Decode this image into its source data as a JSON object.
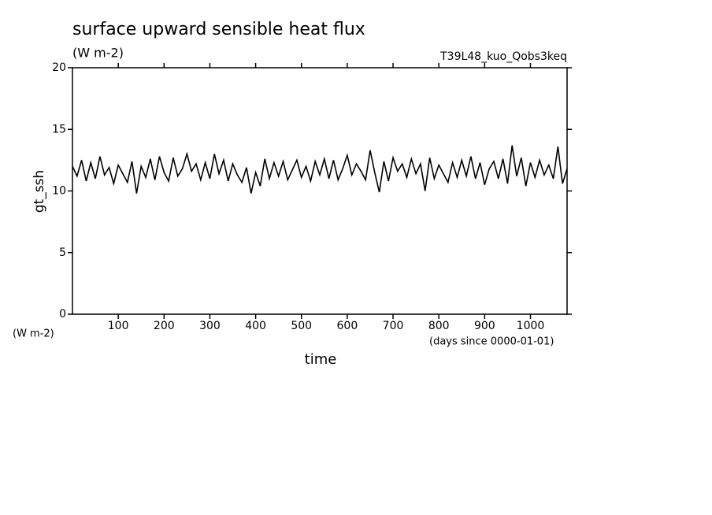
{
  "chart_data": {
    "type": "line",
    "title": "surface upward sensible heat flux",
    "subtitle": "(W m-2)",
    "annotation": "T39L48_kuo_Qobs3keq",
    "y_label": "gt_ssh",
    "y_unit": "(W m-2)",
    "x_label": "time",
    "x_unit": "(days since 0000-01-01)",
    "color": "#000000",
    "x": [
      0,
      10,
      20,
      30,
      40,
      50,
      60,
      70,
      80,
      90,
      100,
      110,
      120,
      130,
      140,
      150,
      160,
      170,
      180,
      190,
      200,
      210,
      220,
      230,
      240,
      250,
      260,
      270,
      280,
      290,
      300,
      310,
      320,
      330,
      340,
      350,
      360,
      370,
      380,
      390,
      400,
      410,
      420,
      430,
      440,
      450,
      460,
      470,
      480,
      490,
      500,
      510,
      520,
      530,
      540,
      550,
      560,
      570,
      580,
      590,
      600,
      610,
      620,
      630,
      640,
      650,
      660,
      670,
      680,
      690,
      700,
      710,
      720,
      730,
      740,
      750,
      760,
      770,
      780,
      790,
      800,
      810,
      820,
      830,
      840,
      850,
      860,
      870,
      880,
      890,
      900,
      910,
      920,
      930,
      940,
      950,
      960,
      970,
      980,
      990,
      1000,
      1010,
      1020,
      1030,
      1040,
      1050,
      1060,
      1070,
      1080
    ],
    "values": [
      12.0,
      11.2,
      12.5,
      10.8,
      12.3,
      11.0,
      12.8,
      11.3,
      11.9,
      10.6,
      12.1,
      11.4,
      10.7,
      12.4,
      9.8,
      12.0,
      11.1,
      12.6,
      10.9,
      12.8,
      11.5,
      10.8,
      12.7,
      11.2,
      11.8,
      13.0,
      11.6,
      12.2,
      10.9,
      12.3,
      11.0,
      13.0,
      11.4,
      12.5,
      10.8,
      12.2,
      11.3,
      10.7,
      11.9,
      9.8,
      11.5,
      10.4,
      12.6,
      11.0,
      12.3,
      11.2,
      12.4,
      10.9,
      11.7,
      12.5,
      11.1,
      12.0,
      10.8,
      12.4,
      11.3,
      12.6,
      11.0,
      12.5,
      10.9,
      11.8,
      12.9,
      11.3,
      12.2,
      11.6,
      10.9,
      13.3,
      11.5,
      9.9,
      12.4,
      10.8,
      12.7,
      11.6,
      12.2,
      11.1,
      12.6,
      11.4,
      12.2,
      10.0,
      12.7,
      11.0,
      12.1,
      11.4,
      10.7,
      12.3,
      11.1,
      12.5,
      11.2,
      12.8,
      11.0,
      12.3,
      10.5,
      11.8,
      12.4,
      11.0,
      12.6,
      10.6,
      13.7,
      11.2,
      12.7,
      10.4,
      12.3,
      11.1,
      12.5,
      11.3,
      12.1,
      11.0,
      13.6,
      10.6,
      11.8
    ],
    "xlim": [
      0,
      1080
    ],
    "xticks": [
      100,
      200,
      300,
      400,
      500,
      600,
      700,
      800,
      900,
      1000
    ],
    "ylim": [
      0,
      20
    ],
    "yticks": [
      0,
      5,
      10,
      15,
      20
    ]
  }
}
